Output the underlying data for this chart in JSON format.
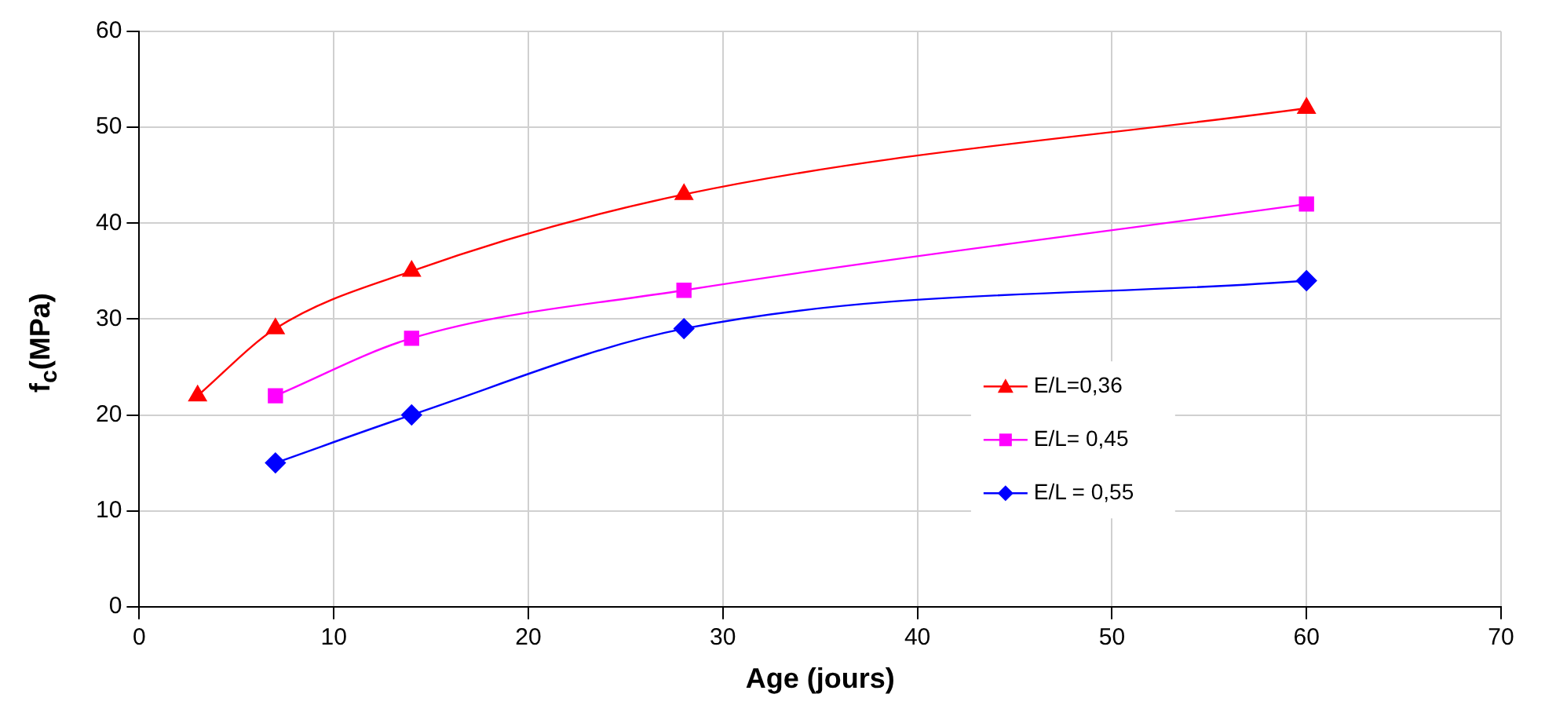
{
  "chart_data": {
    "type": "line",
    "xlabel": "Age (jours)",
    "ylabel": "f$_{c}$(MPa)",
    "xlim": [
      0,
      70
    ],
    "xticks": [
      0,
      10,
      20,
      30,
      40,
      50,
      60,
      70
    ],
    "ylim": [
      0,
      60
    ],
    "yticks": [
      0,
      10,
      20,
      30,
      40,
      50,
      60
    ],
    "grid": true,
    "legend": "right",
    "series": [
      {
        "name": "E/L=0,36",
        "color": "#ff0000",
        "marker": "triangle",
        "x": [
          3,
          7,
          14,
          28,
          60
        ],
        "values": [
          22,
          29,
          35,
          43,
          52
        ]
      },
      {
        "name": "E/L= 0,45",
        "color": "#ff00ff",
        "marker": "square",
        "x": [
          7,
          14,
          28,
          60
        ],
        "values": [
          22,
          28,
          33,
          42
        ]
      },
      {
        "name": "E/L = 0,55",
        "color": "#0000ff",
        "marker": "diamond",
        "x": [
          7,
          14,
          28,
          60
        ],
        "values": [
          15,
          20,
          29,
          34
        ]
      }
    ]
  }
}
